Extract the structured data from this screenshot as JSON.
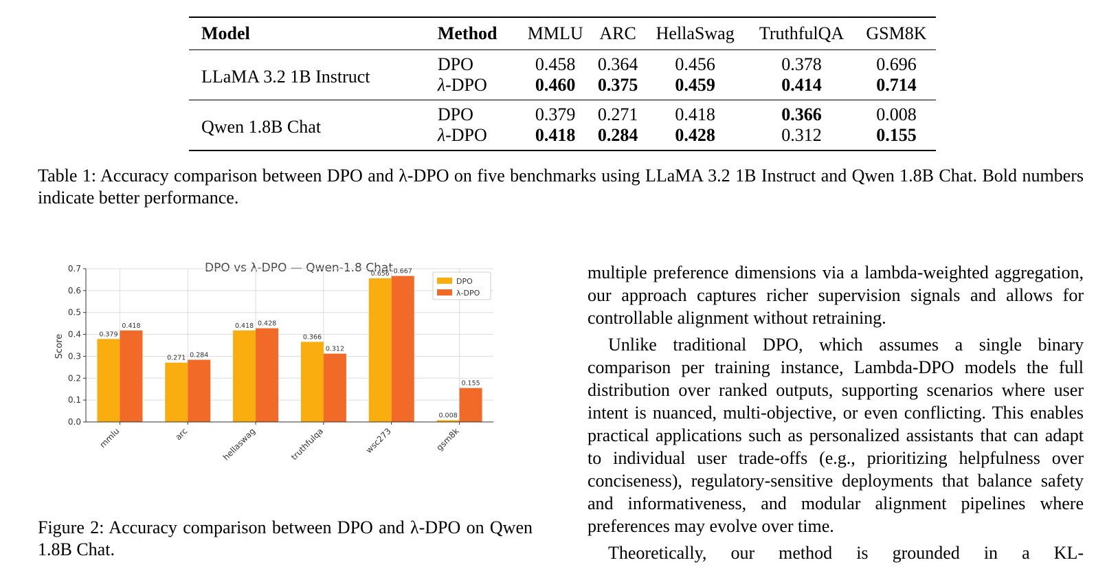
{
  "table": {
    "headers": [
      "Model",
      "Method",
      "MMLU",
      "ARC",
      "HellaSwag",
      "TruthfulQA",
      "GSM8K"
    ],
    "groups": [
      {
        "model": "LLaMA 3.2 1B Instruct",
        "rows": [
          {
            "method_prefix": "",
            "method": "DPO",
            "values": [
              "0.458",
              "0.364",
              "0.456",
              "0.378",
              "0.696"
            ],
            "bold": [
              false,
              false,
              false,
              false,
              false
            ]
          },
          {
            "method_prefix": "λ",
            "method": "-DPO",
            "values": [
              "0.460",
              "0.375",
              "0.459",
              "0.414",
              "0.714"
            ],
            "bold": [
              true,
              true,
              true,
              true,
              true
            ]
          }
        ]
      },
      {
        "model": "Qwen 1.8B Chat",
        "rows": [
          {
            "method_prefix": "",
            "method": "DPO",
            "values": [
              "0.379",
              "0.271",
              "0.418",
              "0.366",
              "0.008"
            ],
            "bold": [
              false,
              false,
              false,
              true,
              false
            ]
          },
          {
            "method_prefix": "λ",
            "method": "-DPO",
            "values": [
              "0.418",
              "0.284",
              "0.428",
              "0.312",
              "0.155"
            ],
            "bold": [
              true,
              true,
              true,
              false,
              true
            ]
          }
        ]
      }
    ]
  },
  "table_caption": "Table 1: Accuracy comparison between DPO and λ-DPO on five benchmarks using LLaMA 3.2 1B Instruct and Qwen 1.8B Chat. Bold numbers indicate better performance.",
  "figure_caption": "Figure 2: Accuracy comparison between DPO and λ-DPO on Qwen 1.8B Chat.",
  "body_text": {
    "p1": "multiple preference dimensions via a lambda-weighted aggregation, our approach captures richer supervision signals and allows for controllable alignment without retraining.",
    "p2": "Unlike traditional DPO, which assumes a single binary comparison per training instance, Lambda-DPO models the full distribution over ranked outputs, supporting scenarios where user intent is nuanced, multi-objective, or even conflicting. This enables practical applications such as personalized assistants that can adapt to individual user trade-offs (e.g., prioritizing helpfulness over conciseness), regulatory-sensitive deployments that balance safety and informativeness, and modular alignment pipelines where preferences may evolve over time.",
    "p3": "Theoretically, our method is grounded in a KL-"
  },
  "chart_data": {
    "type": "bar",
    "title": "DPO vs λ-DPO — Qwen-1.8 Chat",
    "xlabel": "",
    "ylabel": "Score",
    "ylim": [
      0,
      0.7
    ],
    "yticks": [
      "0.0",
      "0.1",
      "0.2",
      "0.3",
      "0.4",
      "0.5",
      "0.6",
      "0.7"
    ],
    "categories": [
      "mmlu",
      "arc",
      "hellaswag",
      "truthfulqa",
      "wsc273",
      "gsm8k"
    ],
    "series": [
      {
        "name": "DPO",
        "color": "#f9ad0f",
        "values": [
          0.379,
          0.271,
          0.418,
          0.366,
          0.656,
          0.008
        ],
        "labels": [
          "0.379",
          "0.271",
          "0.418",
          "0.366",
          "0.656",
          "0.008"
        ]
      },
      {
        "name": "λ-DPO",
        "color": "#f26a27",
        "values": [
          0.418,
          0.284,
          0.428,
          0.312,
          0.667,
          0.155
        ],
        "labels": [
          "0.418",
          "0.284",
          "0.428",
          "0.312",
          "0.667",
          "0.155"
        ]
      }
    ],
    "grid": true,
    "legend": "top-right"
  }
}
